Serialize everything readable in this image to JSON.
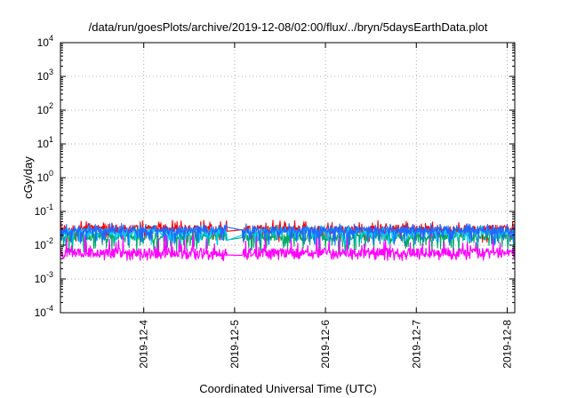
{
  "chart_data": {
    "type": "line",
    "title": "/data/run/goesPlots/archive/2019-12-08/02:00/flux/../bryn/5daysEarthData.plot",
    "xlabel": "Coordinated Universal Time (UTC)",
    "ylabel": "cGy/day",
    "yscale": "log",
    "ylim": [
      0.0001,
      10000
    ],
    "xlim": [
      "2019-12-03 02:00",
      "2019-12-08 02:00"
    ],
    "yticks": [
      {
        "base": "10",
        "exp": "-4"
      },
      {
        "base": "10",
        "exp": "-3"
      },
      {
        "base": "10",
        "exp": "-2"
      },
      {
        "base": "10",
        "exp": "-1"
      },
      {
        "base": "10",
        "exp": "0"
      },
      {
        "base": "10",
        "exp": "1"
      },
      {
        "base": "10",
        "exp": "2"
      },
      {
        "base": "10",
        "exp": "3"
      },
      {
        "base": "10",
        "exp": "4"
      }
    ],
    "xticks": [
      "2019-12-4",
      "2019-12-5",
      "2019-12-6",
      "2019-12-7",
      "2019-12-8"
    ],
    "data_gap": [
      "2019-12-04 22:00",
      "2019-12-05 02:00"
    ],
    "grid": true,
    "series": [
      {
        "color": "#ff0000",
        "typical": 0.03,
        "low": 0.012,
        "high": 0.055
      },
      {
        "color": "#00aa66",
        "typical": 0.018,
        "low": 0.006,
        "high": 0.03
      },
      {
        "color": "#00ccff",
        "typical": 0.025,
        "low": 0.01,
        "high": 0.04
      },
      {
        "color": "#2266ff",
        "typical": 0.028,
        "low": 0.01,
        "high": 0.045
      },
      {
        "color": "#ff00ff",
        "typical": 0.006,
        "low": 0.0035,
        "high": 0.02
      }
    ]
  }
}
